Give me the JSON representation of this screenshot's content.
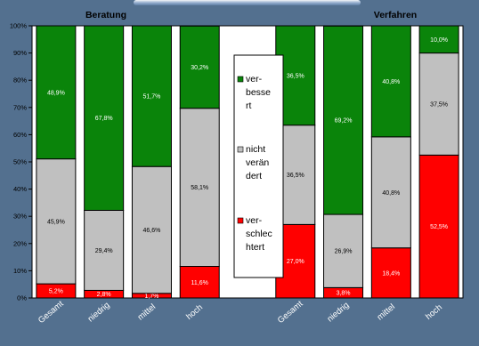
{
  "colors": {
    "background": "#53708f",
    "plot_area": "#ffffff",
    "verbessert": "#0a840a",
    "nicht_veraendert": "#c0c0c0",
    "verschlechtert": "#ff0000"
  },
  "chart_data": {
    "type": "bar",
    "stacked": true,
    "percent_axis": true,
    "ylim": [
      0,
      100
    ],
    "yticks": [
      "0%",
      "10%",
      "20%",
      "30%",
      "40%",
      "50%",
      "60%",
      "70%",
      "80%",
      "90%",
      "100%"
    ],
    "groups": [
      {
        "title": "Beratung",
        "categories": [
          "Gesamt",
          "niedrig",
          "mittel",
          "hoch"
        ]
      },
      {
        "title": "Verfahren",
        "categories": [
          "Gesamt",
          "niedrig",
          "mittel",
          "hoch"
        ]
      }
    ],
    "series": [
      {
        "key": "verschlechtert",
        "name": "ver-schlec-htert",
        "legend_lines": [
          "ver-",
          "schlec",
          "htert"
        ],
        "values": [
          5.2,
          2.8,
          1.7,
          11.6,
          27.0,
          3.8,
          18.4,
          52.5
        ],
        "labels": [
          "5,2%",
          "2,8%",
          "1,7%",
          "11,6%",
          "27,0%",
          "3,8%",
          "18,4%",
          "52,5%"
        ]
      },
      {
        "key": "nicht_veraendert",
        "name": "nicht verän-dert",
        "legend_lines": [
          "nicht",
          "verän",
          "dert"
        ],
        "values": [
          45.9,
          29.4,
          46.6,
          58.1,
          36.5,
          26.9,
          40.8,
          37.5
        ],
        "labels": [
          "45,9%",
          "29,4%",
          "46,6%",
          "58,1%",
          "36,5%",
          "26,9%",
          "40,8%",
          "37,5%"
        ]
      },
      {
        "key": "verbessert",
        "name": "ver-besse-rt",
        "legend_lines": [
          "ver-",
          "besse",
          "rt"
        ],
        "values": [
          48.9,
          67.8,
          51.7,
          30.2,
          36.5,
          69.2,
          40.8,
          10.0
        ],
        "labels": [
          "48,9%",
          "67,8%",
          "51,7%",
          "30,2%",
          "36,5%",
          "69,2%",
          "40,8%",
          "10,0%"
        ]
      }
    ]
  }
}
